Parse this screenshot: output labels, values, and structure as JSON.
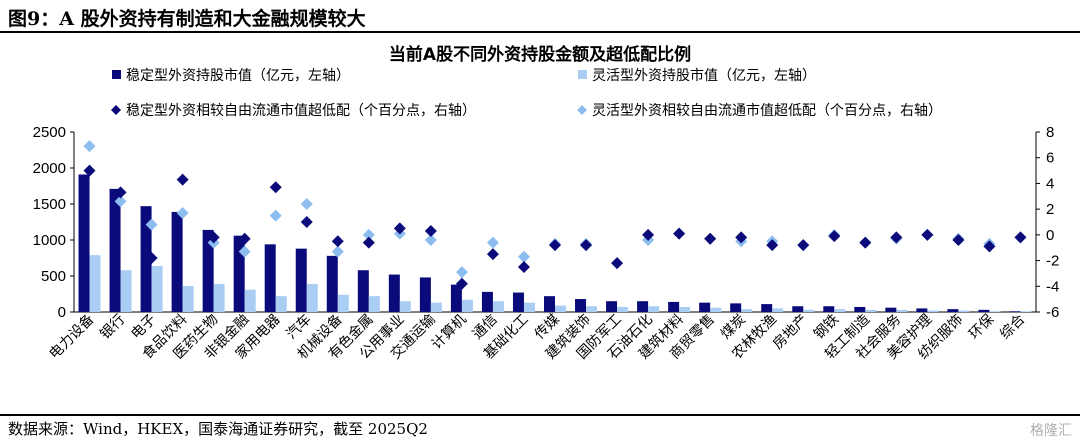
{
  "figure_title": "图9：A 股外资持有制造和大金融规模较大",
  "source": "数据来源：Wind，HKEX，国泰海通证券研究，截至 2025Q2",
  "watermark": "格隆汇",
  "colors": {
    "stable": "#0a0a7a",
    "flexible": "#a9cdf3",
    "stable_marker": "#0a0a7a",
    "flexible_marker": "#8dbdee"
  },
  "chart_data": {
    "type": "bar",
    "title": "当前A股不同外资持股金额及超低配比例",
    "categories": [
      "电力设备",
      "银行",
      "电子",
      "食品饮料",
      "医药生物",
      "非银金融",
      "家用电器",
      "汽车",
      "机械设备",
      "有色金属",
      "公用事业",
      "交通运输",
      "计算机",
      "通信",
      "基础化工",
      "传媒",
      "建筑装饰",
      "国防军工",
      "石油石化",
      "建筑材料",
      "商贸零售",
      "煤炭",
      "农林牧渔",
      "房地产",
      "钢铁",
      "轻工制造",
      "社会服务",
      "美容护理",
      "纺织服饰",
      "环保",
      "综合"
    ],
    "y_left": {
      "min": 0,
      "max": 2500,
      "ticks": [
        0,
        500,
        1000,
        1500,
        2000,
        2500
      ]
    },
    "y_right": {
      "min": -6,
      "max": 8,
      "ticks": [
        -6,
        -4,
        -2,
        0,
        2,
        4,
        6,
        8
      ]
    },
    "series": [
      {
        "name": "稳定型外资持股市值（亿元，左轴）",
        "kind": "bar",
        "axis": "left",
        "values": [
          1910,
          1710,
          1470,
          1390,
          1140,
          1060,
          940,
          880,
          780,
          580,
          520,
          480,
          380,
          280,
          270,
          220,
          180,
          150,
          150,
          140,
          130,
          120,
          110,
          80,
          80,
          70,
          60,
          50,
          40,
          30,
          10
        ]
      },
      {
        "name": "灵活型外资持股市值（亿元，左轴）",
        "kind": "bar",
        "axis": "left",
        "values": [
          790,
          580,
          640,
          360,
          390,
          310,
          220,
          390,
          240,
          220,
          150,
          130,
          170,
          150,
          130,
          90,
          80,
          70,
          80,
          70,
          60,
          40,
          50,
          30,
          40,
          30,
          30,
          20,
          20,
          10,
          10
        ]
      },
      {
        "name": "稳定型外资相较自由流通市值超低配（个百分点，右轴）",
        "kind": "marker",
        "axis": "right",
        "values": [
          5.0,
          3.3,
          -1.8,
          4.3,
          -0.2,
          -0.3,
          3.7,
          1.0,
          -0.5,
          -0.6,
          0.5,
          0.3,
          -3.8,
          -1.5,
          -2.5,
          -0.8,
          -0.8,
          -2.2,
          0.0,
          0.1,
          -0.3,
          -0.2,
          -0.8,
          -0.8,
          -0.1,
          -0.6,
          -0.2,
          0.0,
          -0.4,
          -0.9,
          -0.2
        ]
      },
      {
        "name": "灵活型外资相较自由流通市值超低配（个百分点，右轴）",
        "kind": "marker",
        "axis": "right",
        "values": [
          6.9,
          2.6,
          0.8,
          1.7,
          -0.6,
          -1.3,
          1.5,
          2.4,
          -1.3,
          0.0,
          0.1,
          -0.4,
          -2.9,
          -0.6,
          -1.7,
          -0.7,
          -0.7,
          -2.2,
          -0.4,
          0.1,
          -0.3,
          -0.5,
          -0.5,
          -0.8,
          0.0,
          -0.6,
          -0.3,
          0.0,
          -0.3,
          -0.7,
          -0.2
        ]
      }
    ]
  }
}
